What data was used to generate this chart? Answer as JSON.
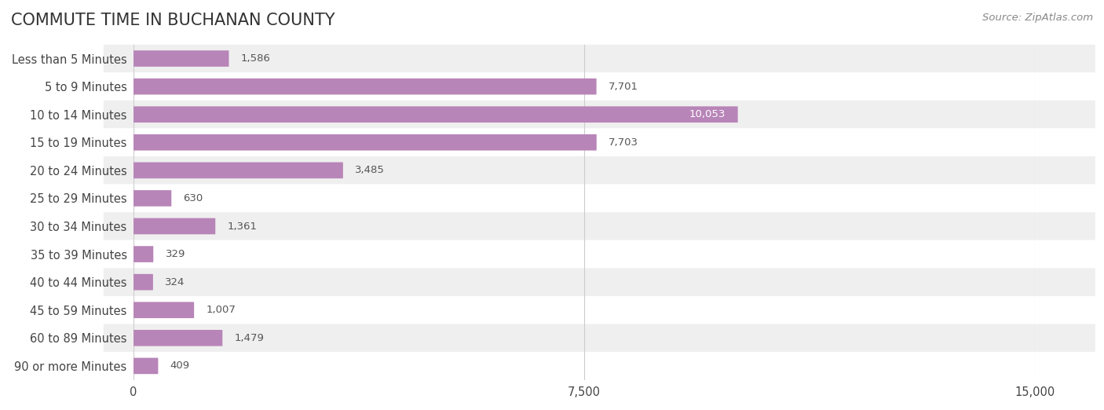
{
  "title": "COMMUTE TIME IN BUCHANAN COUNTY",
  "source": "Source: ZipAtlas.com",
  "categories": [
    "Less than 5 Minutes",
    "5 to 9 Minutes",
    "10 to 14 Minutes",
    "15 to 19 Minutes",
    "20 to 24 Minutes",
    "25 to 29 Minutes",
    "30 to 34 Minutes",
    "35 to 39 Minutes",
    "40 to 44 Minutes",
    "45 to 59 Minutes",
    "60 to 89 Minutes",
    "90 or more Minutes"
  ],
  "values": [
    1586,
    7701,
    10053,
    7703,
    3485,
    630,
    1361,
    329,
    324,
    1007,
    1479,
    409
  ],
  "bar_color": "#b885b8",
  "bar_color_highlight": "#9b59a6",
  "row_bg_even": "#efefef",
  "row_bg_odd": "#ffffff",
  "label_color": "#444444",
  "value_label_color_inside": "#ffffff",
  "value_label_color_outside": "#555555",
  "title_color": "#333333",
  "source_color": "#888888",
  "grid_color": "#cccccc",
  "xlim": [
    0,
    15000
  ],
  "xticks": [
    0,
    7500,
    15000
  ],
  "title_fontsize": 15,
  "label_fontsize": 10.5,
  "value_fontsize": 9.5,
  "source_fontsize": 9.5,
  "bar_height": 0.58,
  "rounding_size": 0.28,
  "background_color": "#ffffff"
}
